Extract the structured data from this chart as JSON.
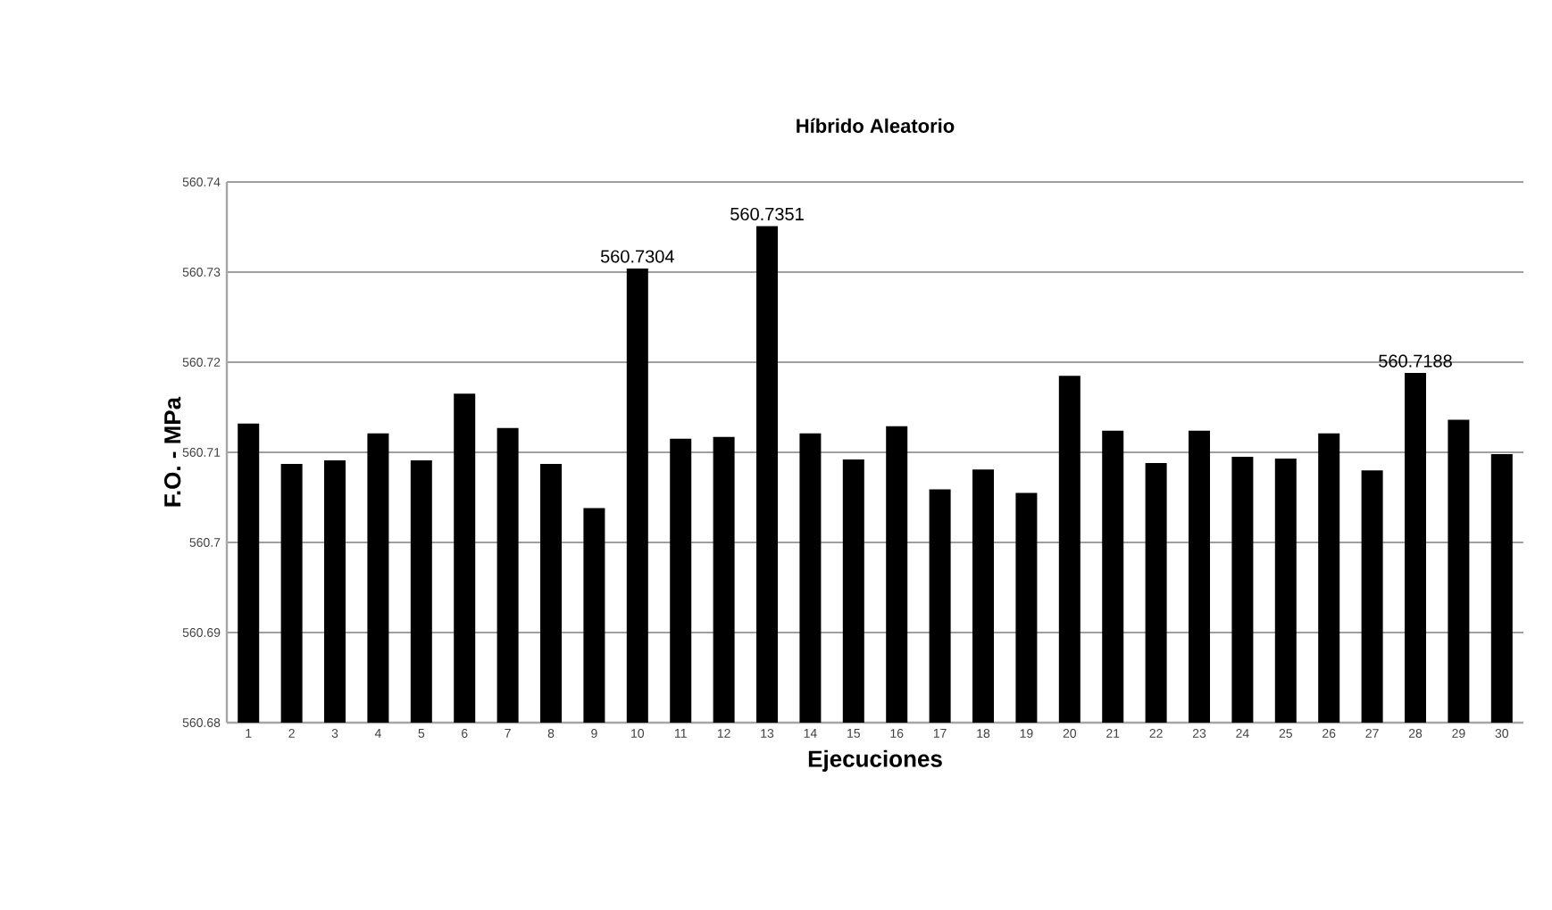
{
  "chart_data": {
    "type": "bar",
    "title": "Híbrido Aleatorio",
    "xlabel": "Ejecuciones",
    "ylabel": "F.O. - MPa",
    "categories": [
      "1",
      "2",
      "3",
      "4",
      "5",
      "6",
      "7",
      "8",
      "9",
      "10",
      "11",
      "12",
      "13",
      "14",
      "15",
      "16",
      "17",
      "18",
      "19",
      "20",
      "21",
      "22",
      "23",
      "24",
      "25",
      "26",
      "27",
      "28",
      "29",
      "30"
    ],
    "values": [
      560.7132,
      560.7087,
      560.7091,
      560.7121,
      560.7091,
      560.7165,
      560.7127,
      560.7087,
      560.7038,
      560.7304,
      560.7115,
      560.7117,
      560.7351,
      560.7121,
      560.7092,
      560.7129,
      560.7059,
      560.7081,
      560.7055,
      560.7185,
      560.7124,
      560.7088,
      560.7124,
      560.7095,
      560.7093,
      560.7121,
      560.708,
      560.7188,
      560.7136,
      560.7098
    ],
    "value_labels": [
      null,
      null,
      null,
      null,
      null,
      null,
      null,
      null,
      null,
      "560.7304",
      null,
      null,
      "560.7351",
      null,
      null,
      null,
      null,
      null,
      null,
      null,
      null,
      null,
      null,
      null,
      null,
      null,
      null,
      "560.7188",
      null,
      null
    ],
    "color": "#000000",
    "ylim": [
      560.68,
      560.74
    ],
    "yticks": [
      560.68,
      560.69,
      560.7,
      560.71,
      560.72,
      560.73,
      560.74
    ],
    "grid": "y"
  }
}
